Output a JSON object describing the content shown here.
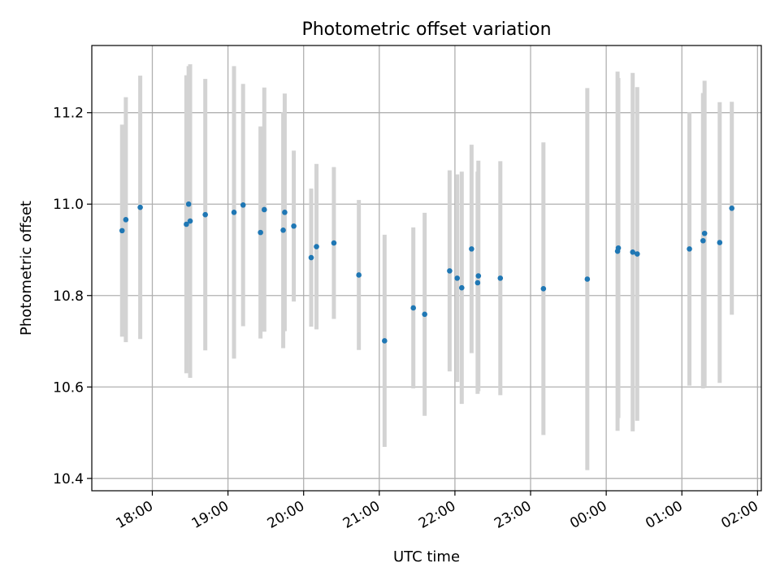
{
  "chart_data": {
    "type": "scatter",
    "title": "Photometric offset variation",
    "xlabel": "UTC time",
    "ylabel": "Photometric offset",
    "xlim": [
      17.2,
      26.05
    ],
    "ylim": [
      10.373,
      11.347
    ],
    "grid": true,
    "x_ticks": [
      {
        "x": 18,
        "label": "18:00"
      },
      {
        "x": 19,
        "label": "19:00"
      },
      {
        "x": 20,
        "label": "20:00"
      },
      {
        "x": 21,
        "label": "21:00"
      },
      {
        "x": 22,
        "label": "22:00"
      },
      {
        "x": 23,
        "label": "23:00"
      },
      {
        "x": 24,
        "label": "00:00"
      },
      {
        "x": 25,
        "label": "01:00"
      },
      {
        "x": 26,
        "label": "02:00"
      }
    ],
    "y_ticks": [
      {
        "y": 10.4,
        "label": "10.4"
      },
      {
        "y": 10.6,
        "label": "10.6"
      },
      {
        "y": 10.8,
        "label": "10.8"
      },
      {
        "y": 11.0,
        "label": "11.0"
      },
      {
        "y": 11.2,
        "label": "11.2"
      }
    ],
    "colors": {
      "points": "#1f77b4",
      "errorbars": "#d3d3d3",
      "grid": "#b0b0b0"
    },
    "points": [
      {
        "x": 17.6,
        "y": 10.942,
        "low": 10.71,
        "high": 11.174
      },
      {
        "x": 17.65,
        "y": 10.966,
        "low": 10.698,
        "high": 11.234
      },
      {
        "x": 17.84,
        "y": 10.993,
        "low": 10.705,
        "high": 11.281
      },
      {
        "x": 18.45,
        "y": 10.956,
        "low": 10.63,
        "high": 11.282
      },
      {
        "x": 18.48,
        "y": 11.0,
        "low": 10.698,
        "high": 11.302
      },
      {
        "x": 18.5,
        "y": 10.963,
        "low": 10.62,
        "high": 11.306
      },
      {
        "x": 18.7,
        "y": 10.977,
        "low": 10.68,
        "high": 11.274
      },
      {
        "x": 19.08,
        "y": 10.982,
        "low": 10.662,
        "high": 11.302
      },
      {
        "x": 19.2,
        "y": 10.998,
        "low": 10.733,
        "high": 11.263
      },
      {
        "x": 19.43,
        "y": 10.938,
        "low": 10.706,
        "high": 11.17
      },
      {
        "x": 19.48,
        "y": 10.988,
        "low": 10.721,
        "high": 11.255
      },
      {
        "x": 19.73,
        "y": 10.943,
        "low": 10.685,
        "high": 11.201
      },
      {
        "x": 19.75,
        "y": 10.982,
        "low": 10.722,
        "high": 11.242
      },
      {
        "x": 19.87,
        "y": 10.952,
        "low": 10.787,
        "high": 11.117
      },
      {
        "x": 20.1,
        "y": 10.883,
        "low": 10.732,
        "high": 11.034
      },
      {
        "x": 20.17,
        "y": 10.907,
        "low": 10.726,
        "high": 11.088
      },
      {
        "x": 20.4,
        "y": 10.915,
        "low": 10.749,
        "high": 11.081
      },
      {
        "x": 20.73,
        "y": 10.845,
        "low": 10.681,
        "high": 11.009
      },
      {
        "x": 21.07,
        "y": 10.701,
        "low": 10.469,
        "high": 10.933
      },
      {
        "x": 21.45,
        "y": 10.773,
        "low": 10.597,
        "high": 10.949
      },
      {
        "x": 21.6,
        "y": 10.759,
        "low": 10.537,
        "high": 10.981
      },
      {
        "x": 21.93,
        "y": 10.854,
        "low": 10.634,
        "high": 11.074
      },
      {
        "x": 22.03,
        "y": 10.838,
        "low": 10.611,
        "high": 11.065
      },
      {
        "x": 22.09,
        "y": 10.817,
        "low": 10.563,
        "high": 11.071
      },
      {
        "x": 22.22,
        "y": 10.902,
        "low": 10.674,
        "high": 11.13
      },
      {
        "x": 22.3,
        "y": 10.828,
        "low": 10.585,
        "high": 11.071
      },
      {
        "x": 22.31,
        "y": 10.843,
        "low": 10.591,
        "high": 11.095
      },
      {
        "x": 22.6,
        "y": 10.838,
        "low": 10.582,
        "high": 11.094
      },
      {
        "x": 23.17,
        "y": 10.815,
        "low": 10.495,
        "high": 11.135
      },
      {
        "x": 23.75,
        "y": 10.836,
        "low": 10.418,
        "high": 11.254
      },
      {
        "x": 24.15,
        "y": 10.897,
        "low": 10.504,
        "high": 11.29
      },
      {
        "x": 24.16,
        "y": 10.904,
        "low": 10.532,
        "high": 11.276
      },
      {
        "x": 24.35,
        "y": 10.895,
        "low": 10.503,
        "high": 11.287
      },
      {
        "x": 24.41,
        "y": 10.891,
        "low": 10.526,
        "high": 11.256
      },
      {
        "x": 25.1,
        "y": 10.902,
        "low": 10.603,
        "high": 11.201
      },
      {
        "x": 25.28,
        "y": 10.92,
        "low": 10.597,
        "high": 11.243
      },
      {
        "x": 25.3,
        "y": 10.936,
        "low": 10.602,
        "high": 11.27
      },
      {
        "x": 25.5,
        "y": 10.916,
        "low": 10.609,
        "high": 11.223
      },
      {
        "x": 25.66,
        "y": 10.991,
        "low": 10.758,
        "high": 11.224
      }
    ]
  }
}
